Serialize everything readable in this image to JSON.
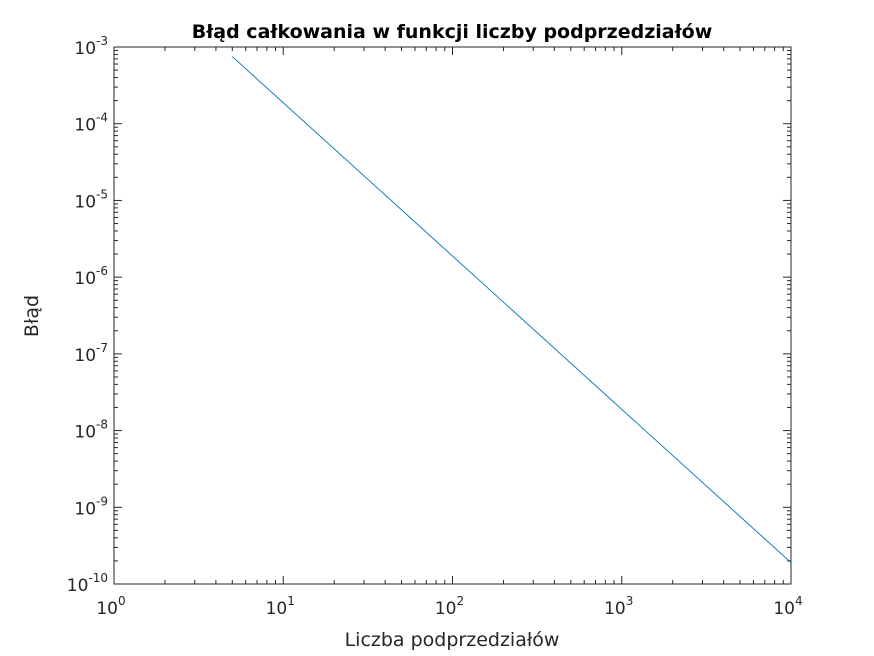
{
  "chart_data": {
    "type": "line",
    "title": "Błąd całkowania w funkcji liczby podprzedziałów",
    "xlabel": "Liczba podprzedziałów",
    "ylabel": "Błąd",
    "xscale": "log",
    "yscale": "log",
    "xlim": [
      1,
      10000
    ],
    "ylim": [
      1e-10,
      0.001
    ],
    "x_ticks": [
      {
        "base": "10",
        "exp": "0"
      },
      {
        "base": "10",
        "exp": "1"
      },
      {
        "base": "10",
        "exp": "2"
      },
      {
        "base": "10",
        "exp": "3"
      },
      {
        "base": "10",
        "exp": "4"
      }
    ],
    "y_ticks": [
      {
        "base": "10",
        "exp": "-10"
      },
      {
        "base": "10",
        "exp": "-9"
      },
      {
        "base": "10",
        "exp": "-8"
      },
      {
        "base": "10",
        "exp": "-7"
      },
      {
        "base": "10",
        "exp": "-6"
      },
      {
        "base": "10",
        "exp": "-5"
      },
      {
        "base": "10",
        "exp": "-4"
      },
      {
        "base": "10",
        "exp": "-3"
      }
    ],
    "grid": false,
    "box": true,
    "series": [
      {
        "color": "#0072bd",
        "x": [
          5,
          10000
        ],
        "y": [
          0.00075,
          1.9e-10
        ]
      }
    ]
  }
}
